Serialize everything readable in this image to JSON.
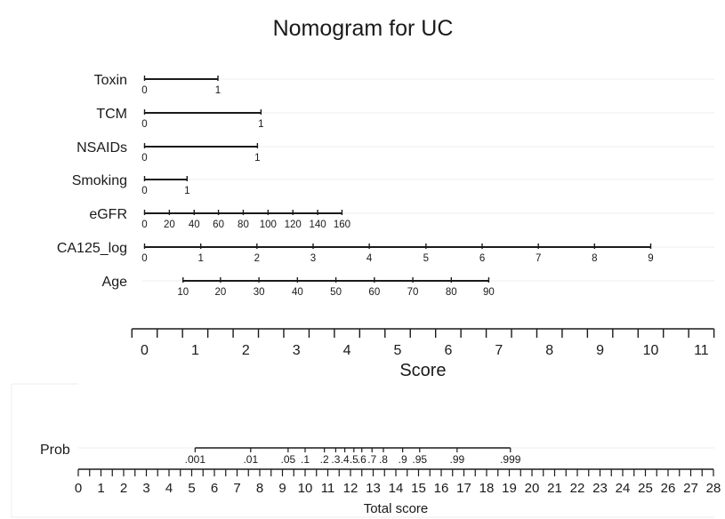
{
  "chart_data": {
    "type": "nomogram",
    "title": "Nomogram for UC",
    "predictors": [
      {
        "name": "Toxin",
        "ticks": [
          {
            "label": "0",
            "points": 0
          },
          {
            "label": "1",
            "points": 1.45
          }
        ]
      },
      {
        "name": "TCM",
        "ticks": [
          {
            "label": "0",
            "points": 0
          },
          {
            "label": "1",
            "points": 2.3
          }
        ]
      },
      {
        "name": "NSAIDs",
        "ticks": [
          {
            "label": "0",
            "points": 0
          },
          {
            "label": "1",
            "points": 2.23
          }
        ]
      },
      {
        "name": "Smoking",
        "ticks": [
          {
            "label": "0",
            "points": 0
          },
          {
            "label": "1",
            "points": 0.84
          }
        ]
      },
      {
        "name": "eGFR",
        "ticks": [
          {
            "label": "0",
            "points": 0
          },
          {
            "label": "20",
            "points": 0.49
          },
          {
            "label": "40",
            "points": 0.98
          },
          {
            "label": "60",
            "points": 1.46
          },
          {
            "label": "80",
            "points": 1.95
          },
          {
            "label": "100",
            "points": 2.44
          },
          {
            "label": "120",
            "points": 2.93
          },
          {
            "label": "140",
            "points": 3.42
          },
          {
            "label": "160",
            "points": 3.9
          }
        ]
      },
      {
        "name": "CA125_log",
        "ticks": [
          {
            "label": "0",
            "points": 0
          },
          {
            "label": "1",
            "points": 1.11
          },
          {
            "label": "2",
            "points": 2.22
          },
          {
            "label": "3",
            "points": 3.33
          },
          {
            "label": "4",
            "points": 4.44
          },
          {
            "label": "5",
            "points": 5.56
          },
          {
            "label": "6",
            "points": 6.67
          },
          {
            "label": "7",
            "points": 7.78
          },
          {
            "label": "8",
            "points": 8.89
          },
          {
            "label": "9",
            "points": 10
          }
        ]
      },
      {
        "name": "Age",
        "ticks": [
          {
            "label": "10",
            "points": 0.76
          },
          {
            "label": "20",
            "points": 1.5
          },
          {
            "label": "30",
            "points": 2.26
          },
          {
            "label": "40",
            "points": 3.02
          },
          {
            "label": "50",
            "points": 3.78
          },
          {
            "label": "60",
            "points": 4.54
          },
          {
            "label": "70",
            "points": 5.3
          },
          {
            "label": "80",
            "points": 6.06
          },
          {
            "label": "90",
            "points": 6.8
          }
        ]
      }
    ],
    "score_axis": {
      "label": "Score",
      "range": [
        -0.25,
        11.25
      ],
      "major_ticks": [
        0,
        1,
        2,
        3,
        4,
        5,
        6,
        7,
        8,
        9,
        10,
        11
      ]
    },
    "probability_axis": {
      "name": "Prob",
      "ticks": [
        {
          "label": ".001",
          "total": 5.15
        },
        {
          "label": ".01",
          "total": 7.6
        },
        {
          "label": ".05",
          "total": 9.25
        },
        {
          "label": ".1",
          "total": 10.0
        },
        {
          "label": ".2",
          "total": 10.85
        },
        {
          "label": ".3",
          "total": 11.35
        },
        {
          "label": ".4",
          "total": 11.75
        },
        {
          "label": ".5",
          "total": 12.15
        },
        {
          "label": ".6",
          "total": 12.5
        },
        {
          "label": ".7",
          "total": 12.95
        },
        {
          "label": ".8",
          "total": 13.45
        },
        {
          "label": ".9",
          "total": 14.3
        },
        {
          "label": ".95",
          "total": 15.05
        },
        {
          "label": ".99",
          "total": 16.7
        },
        {
          "label": ".999",
          "total": 19.05
        }
      ]
    },
    "total_axis": {
      "label": "Total score",
      "range": [
        0,
        28
      ],
      "ticks": [
        0,
        1,
        2,
        3,
        4,
        5,
        6,
        7,
        8,
        9,
        10,
        11,
        12,
        13,
        14,
        15,
        16,
        17,
        18,
        19,
        20,
        21,
        22,
        23,
        24,
        25,
        26,
        27,
        28
      ]
    },
    "grid": true
  }
}
